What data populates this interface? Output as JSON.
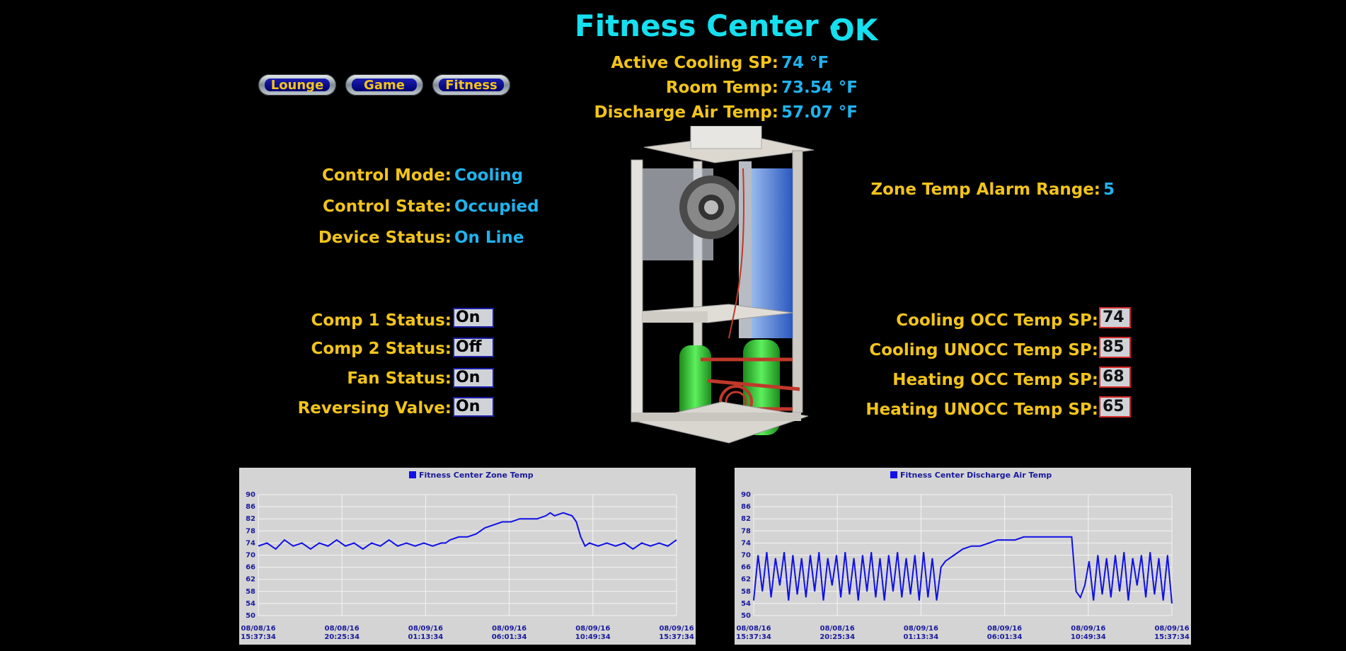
{
  "header": {
    "title": "Fitness Center -",
    "status": "OK"
  },
  "nav": {
    "buttons": [
      "Lounge",
      "Game",
      "Fitness"
    ]
  },
  "top_readings": [
    {
      "label": "Active Cooling SP:",
      "value": "74 °F"
    },
    {
      "label": "Room Temp:",
      "value": "73.54 °F"
    },
    {
      "label": "Discharge Air Temp:",
      "value": "57.07 °F"
    }
  ],
  "control": [
    {
      "label": "Control Mode:",
      "value": "Cooling"
    },
    {
      "label": "Control State:",
      "value": "Occupied"
    },
    {
      "label": "Device Status:",
      "value": "On Line"
    }
  ],
  "alarm": {
    "label": "Zone Temp Alarm Range:",
    "value": "5"
  },
  "statuses": [
    {
      "label": "Comp 1 Status:",
      "value": "On"
    },
    {
      "label": "Comp 2 Status:",
      "value": "Off"
    },
    {
      "label": "Fan Status:",
      "value": "On"
    },
    {
      "label": "Reversing Valve:",
      "value": "On"
    }
  ],
  "setpoints": [
    {
      "label": "Cooling OCC Temp SP:",
      "value": "74"
    },
    {
      "label": "Cooling UNOCC Temp SP:",
      "value": "85"
    },
    {
      "label": "Heating OCC Temp SP:",
      "value": "68"
    },
    {
      "label": "Heating UNOCC Temp SP:",
      "value": "65"
    }
  ],
  "colors": {
    "label": "#f2c41a",
    "value": "#1fb3ee",
    "title": "#14e0f0",
    "series": "#1010e8"
  },
  "chart_data": [
    {
      "type": "line",
      "title": "",
      "legend": "Fitness  Center Zone Temp",
      "yticks": [
        90,
        86,
        82,
        78,
        74,
        70,
        66,
        62,
        58,
        54,
        50
      ],
      "ylim": [
        50,
        90
      ],
      "xticks": [
        {
          "date": "08/08/16",
          "time": "15:37:34"
        },
        {
          "date": "08/08/16",
          "time": "20:25:34"
        },
        {
          "date": "08/09/16",
          "time": "01:13:34"
        },
        {
          "date": "08/09/16",
          "time": "06:01:34"
        },
        {
          "date": "08/09/16",
          "time": "10:49:34"
        },
        {
          "date": "08/09/16",
          "time": "15:37:34"
        }
      ],
      "grid": true,
      "series": [
        {
          "name": "Fitness  Center Zone Temp",
          "t": [
            0,
            0.5,
            1,
            1.5,
            2,
            2.5,
            3,
            3.5,
            4,
            4.5,
            5,
            5.5,
            6,
            6.5,
            7,
            7.5,
            8,
            8.5,
            9,
            9.5,
            10,
            10.5,
            10.75,
            11,
            11.5,
            12,
            12.5,
            12.75,
            13,
            13.5,
            14,
            14.5,
            15,
            15.5,
            16,
            16.5,
            16.75,
            17,
            17.5,
            18,
            18.25,
            18.5,
            18.75,
            19,
            19.5,
            20,
            20.5,
            21,
            21.5,
            22,
            22.5,
            23,
            23.5,
            24
          ],
          "y": [
            73,
            74,
            72,
            75,
            73,
            74,
            72,
            74,
            73,
            75,
            73,
            74,
            72,
            74,
            73,
            75,
            73,
            74,
            73,
            74,
            73,
            74,
            74,
            75,
            76,
            76,
            77,
            78,
            79,
            80,
            81,
            81,
            82,
            82,
            82,
            83,
            84,
            83,
            84,
            83,
            81,
            76,
            73,
            74,
            73,
            74,
            73,
            74,
            72,
            74,
            73,
            74,
            73,
            75
          ]
        }
      ]
    },
    {
      "type": "line",
      "title": "",
      "legend": "Fitness Center Discharge Air Temp",
      "yticks": [
        90,
        86,
        82,
        78,
        74,
        70,
        66,
        62,
        58,
        54,
        50
      ],
      "ylim": [
        50,
        90
      ],
      "xticks": [
        {
          "date": "08/08/16",
          "time": "15:37:34"
        },
        {
          "date": "08/08/16",
          "time": "20:25:34"
        },
        {
          "date": "08/09/16",
          "time": "01:13:34"
        },
        {
          "date": "08/09/16",
          "time": "06:01:34"
        },
        {
          "date": "08/09/16",
          "time": "10:49:34"
        },
        {
          "date": "08/09/16",
          "time": "15:37:34"
        }
      ],
      "grid": true,
      "series": [
        {
          "name": "Fitness Center Discharge Air Temp",
          "t": [
            0,
            0.25,
            0.5,
            0.75,
            1,
            1.25,
            1.5,
            1.75,
            2,
            2.25,
            2.5,
            2.75,
            3,
            3.25,
            3.5,
            3.75,
            4,
            4.25,
            4.5,
            4.75,
            5,
            5.25,
            5.5,
            5.75,
            6,
            6.25,
            6.5,
            6.75,
            7,
            7.25,
            7.5,
            7.75,
            8,
            8.25,
            8.5,
            8.75,
            9,
            9.25,
            9.5,
            9.75,
            10,
            10.25,
            10.5,
            10.75,
            11,
            11.5,
            12,
            12.5,
            13,
            13.5,
            14,
            14.5,
            15,
            15.5,
            16,
            16.5,
            17,
            17.5,
            18,
            18.25,
            18.5,
            18.75,
            19,
            19.25,
            19.5,
            19.75,
            20,
            20.25,
            20.5,
            20.75,
            21,
            21.25,
            21.5,
            21.75,
            22,
            22.25,
            22.5,
            22.75,
            23,
            23.25,
            23.5,
            23.75,
            24
          ],
          "y": [
            55,
            70,
            58,
            71,
            56,
            69,
            60,
            71,
            55,
            70,
            57,
            69,
            56,
            70,
            58,
            71,
            55,
            69,
            60,
            70,
            56,
            71,
            57,
            69,
            55,
            70,
            58,
            71,
            56,
            69,
            55,
            70,
            58,
            71,
            56,
            69,
            57,
            70,
            55,
            71,
            56,
            69,
            55,
            66,
            68,
            70,
            72,
            73,
            73,
            74,
            75,
            75,
            75,
            76,
            76,
            76,
            76,
            76,
            76,
            76,
            58,
            56,
            60,
            68,
            55,
            70,
            57,
            69,
            56,
            70,
            58,
            71,
            55,
            69,
            60,
            70,
            56,
            71,
            57,
            69,
            55,
            70,
            54
          ]
        }
      ]
    }
  ]
}
